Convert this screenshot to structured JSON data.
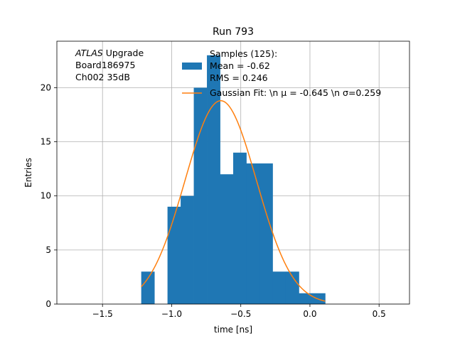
{
  "chart_data": {
    "type": "bar",
    "title": "Run 793",
    "xlabel": "time [ns]",
    "ylabel": "Entries",
    "xlim": [
      -1.83,
      0.72
    ],
    "ylim": [
      0,
      24.3
    ],
    "x_ticks": [
      -1.5,
      -1.0,
      -0.5,
      0.0,
      0.5
    ],
    "x_tick_labels": [
      "−1.5",
      "−1.0",
      "−0.5",
      "0.0",
      "0.5"
    ],
    "y_ticks": [
      0,
      5,
      10,
      15,
      20
    ],
    "y_tick_labels": [
      "0",
      "5",
      "10",
      "15",
      "20"
    ],
    "grid": true,
    "annotation": {
      "italic": "ATLAS",
      "line1_rest": " Upgrade",
      "line2": " Board186975",
      "line3": " Ch002 35dB"
    },
    "histogram": {
      "color": "#1f77b4",
      "bin_edges": [
        -1.22,
        -1.125,
        -1.03,
        -0.935,
        -0.84,
        -0.745,
        -0.65,
        -0.555,
        -0.46,
        -0.365,
        -0.27,
        -0.175,
        -0.08,
        0.015,
        0.11
      ],
      "counts": [
        3,
        0,
        9,
        10,
        20,
        23,
        12,
        14,
        13,
        13,
        3,
        3,
        1,
        1
      ]
    },
    "fit": {
      "color": "#ff7f0e",
      "amplitude": 18.8,
      "mu": -0.645,
      "sigma": 0.259,
      "x_range": [
        -1.22,
        0.11
      ]
    },
    "legend": {
      "placement": "top-right",
      "hist_line1": "Samples (125):",
      "hist_line2": " Mean = -0.62",
      "hist_line3": " RMS = 0.246",
      "fit_label": "Gaussian Fit: \\n μ = -0.645 \\n σ=0.259"
    }
  }
}
